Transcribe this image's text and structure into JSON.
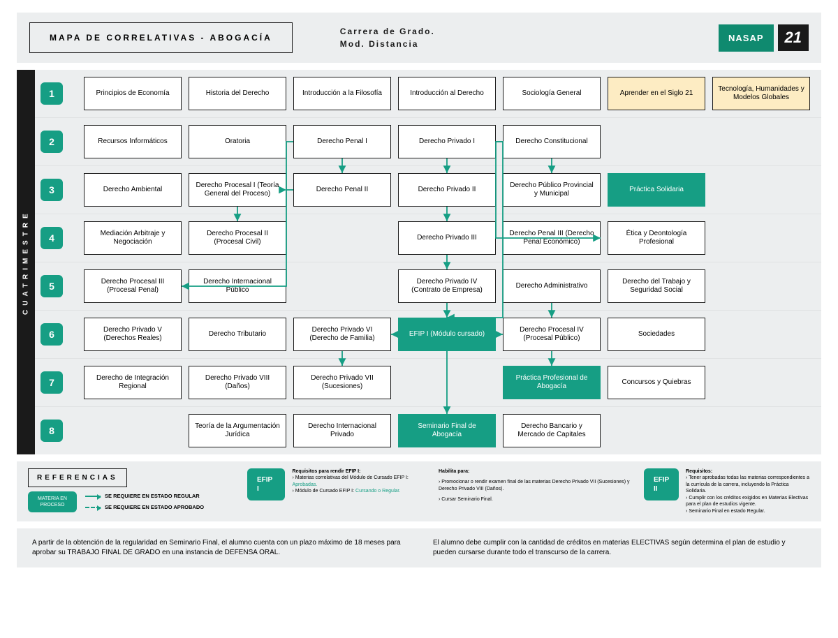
{
  "header": {
    "title": "MAPA DE CORRELATIVAS - ABOGACÍA",
    "subtitle_1": "Carrera de Grado.",
    "subtitle_2": "Mod. Distancia",
    "logo1": "NASAP",
    "logo2": "21"
  },
  "side_label": "CUATRIMESTRE",
  "colors": {
    "accent": "#169e84",
    "band": "#eceeef",
    "highlight_bg": "#fdecc3",
    "text": "#1a1a1a"
  },
  "rows": [
    {
      "n": "1",
      "cells": [
        {
          "t": "Principios de Economía"
        },
        {
          "t": "Historia del Derecho"
        },
        {
          "t": "Introducción a la Filosofía"
        },
        {
          "t": "Introducción al Derecho"
        },
        {
          "t": "Sociología General"
        },
        {
          "t": "Aprender en el Siglo 21",
          "cls": "highlight"
        },
        {
          "t": "Tecnología, Humanidades y Modelos Globales",
          "cls": "highlight"
        }
      ]
    },
    {
      "n": "2",
      "cells": [
        {
          "t": "Recursos Informáticos"
        },
        {
          "t": "Oratoria"
        },
        {
          "t": "Derecho Penal I"
        },
        {
          "t": "Derecho Privado I"
        },
        {
          "t": "Derecho Constitucional"
        },
        {
          "t": "",
          "cls": "empty"
        },
        {
          "t": "",
          "cls": "empty"
        }
      ]
    },
    {
      "n": "3",
      "cells": [
        {
          "t": "Derecho Ambiental"
        },
        {
          "t": "Derecho Procesal I (Teoría General del Proceso)"
        },
        {
          "t": "Derecho Penal II"
        },
        {
          "t": "Derecho Privado II"
        },
        {
          "t": "Derecho Público Provincial y Municipal"
        },
        {
          "t": "Práctica Solidaria",
          "cls": "solid"
        },
        {
          "t": "",
          "cls": "empty"
        }
      ]
    },
    {
      "n": "4",
      "cells": [
        {
          "t": "Mediación Arbitraje y Negociación"
        },
        {
          "t": "Derecho Procesal II (Procesal Civil)"
        },
        {
          "t": "",
          "cls": "empty"
        },
        {
          "t": "Derecho Privado III"
        },
        {
          "t": "Derecho Penal III (Derecho Penal Económico)"
        },
        {
          "t": "Ética y Deontología Profesional"
        },
        {
          "t": "",
          "cls": "empty"
        }
      ]
    },
    {
      "n": "5",
      "cells": [
        {
          "t": "Derecho Procesal III (Procesal Penal)"
        },
        {
          "t": "Derecho Internacional Público"
        },
        {
          "t": "",
          "cls": "empty"
        },
        {
          "t": "Derecho Privado IV (Contrato de Empresa)"
        },
        {
          "t": "Derecho Administrativo"
        },
        {
          "t": "Derecho del Trabajo y Seguridad Social"
        },
        {
          "t": "",
          "cls": "empty"
        }
      ]
    },
    {
      "n": "6",
      "cells": [
        {
          "t": "Derecho Privado V (Derechos Reales)"
        },
        {
          "t": "Derecho Tributario"
        },
        {
          "t": "Derecho Privado VI (Derecho de Familia)"
        },
        {
          "t": "EFIP I (Módulo cursado)",
          "cls": "solid"
        },
        {
          "t": "Derecho Procesal IV (Procesal Público)"
        },
        {
          "t": "Sociedades"
        },
        {
          "t": "",
          "cls": "empty"
        }
      ]
    },
    {
      "n": "7",
      "cells": [
        {
          "t": "Derecho de Integración Regional"
        },
        {
          "t": "Derecho Privado VIII (Daños)"
        },
        {
          "t": "Derecho Privado VII (Sucesiones)"
        },
        {
          "t": "",
          "cls": "empty"
        },
        {
          "t": "Práctica Profesional de Abogacía",
          "cls": "solid"
        },
        {
          "t": "Concursos y Quiebras"
        },
        {
          "t": "",
          "cls": "empty"
        }
      ]
    },
    {
      "n": "8",
      "cells": [
        {
          "t": "",
          "cls": "empty"
        },
        {
          "t": "Teoría de la Argumentación Jurídica"
        },
        {
          "t": "Derecho Internacional Privado"
        },
        {
          "t": "Seminario Final de Abogacía",
          "cls": "solid"
        },
        {
          "t": "Derecho Bancario y Mercado de Capitales"
        },
        {
          "t": "",
          "cls": "empty"
        },
        {
          "t": "",
          "cls": "empty"
        }
      ]
    }
  ],
  "edges": {
    "stroke": "#169e84",
    "stroke_width": 1.8,
    "list": [
      {
        "from": "c-2-3",
        "to": "c-3-3"
      },
      {
        "from": "c-2-4",
        "to": "c-3-4"
      },
      {
        "from": "c-3-2",
        "to": "c-4-2"
      },
      {
        "from": "c-3-4",
        "to": "c-4-4"
      },
      {
        "from": "c-4-4",
        "to": "c-5-4"
      },
      {
        "from": "c-5-4",
        "to": "c-6-4"
      },
      {
        "from": "c-5-5",
        "to": "c-6-5"
      },
      {
        "from": "c-6-3",
        "to": "c-7-3"
      },
      {
        "from": "c-6-4",
        "to": "c-8-4"
      },
      {
        "from": "c-6-5",
        "to": "c-7-5"
      },
      {
        "from": "c-2-3",
        "to": "c-3-2",
        "mode": "L"
      },
      {
        "from": "c-3-3",
        "to": "c-5-1",
        "mode": "L"
      },
      {
        "from": "c-2-5",
        "to": "c-3-5",
        "mode": "V"
      },
      {
        "from": "c-2-5",
        "to": "c-4-5",
        "mode": "L"
      },
      {
        "from": "c-2-4",
        "to": "c-6-4",
        "mode": "R"
      },
      {
        "from": "c-6-4",
        "to": "c-6-3",
        "mode": "H",
        "dash": true
      },
      {
        "from": "c-6-4",
        "to": "c-6-5",
        "mode": "H",
        "dash": true
      }
    ]
  },
  "refs": {
    "title": "REFERENCIAS",
    "chip": "MATERIA EN PROCESO",
    "legend_regular": "SE REQUIERE EN ESTADO REGULAR",
    "legend_aprobado": "SE REQUIERE EN ESTADO APROBADO",
    "efip1_label": "EFIP I",
    "efip1_req_title": "Requisitos para rendir EFIP I:",
    "efip1_req_1_a": "› Materias correlativas del Módulo de Cursado EFIP I: ",
    "efip1_req_1_b": "Aprobadas.",
    "efip1_req_2_a": "› Módulo de Cursado EFIP I: ",
    "efip1_req_2_b": "Cursando o Regular.",
    "habilita_title": "Habilita para:",
    "habilita_1": "› Promocionar o rendir examen final de las materias Derecho Privado VII (Sucesiones) y Derecho Privado VIII (Daños).",
    "habilita_2": "› Cursar Seminario Final.",
    "efip2_label": "EFIP II",
    "efip2_req_title": "Requisitos:",
    "efip2_req_1": "› Tener aprobadas todas las materias correspondientes a la currícula de la carrera, incluyendo la Práctica Solidaria.",
    "efip2_req_2": "› Cumplir con los créditos exigidos en Materias Electivas para el plan de estudios vigente.",
    "efip2_req_3": "› Seminario Final en estado Regular."
  },
  "footer": {
    "left": "A partir de la obtención de la regularidad en Seminario Final, el alumno cuenta con un plazo máximo de 18 meses para aprobar su TRABAJO FINAL DE GRADO en una instancia de DEFENSA ORAL.",
    "right": "El alumno debe cumplir con la cantidad de créditos en materias ELECTIVAS según determina el plan de estudio y pueden cursarse durante todo el transcurso de la carrera."
  }
}
